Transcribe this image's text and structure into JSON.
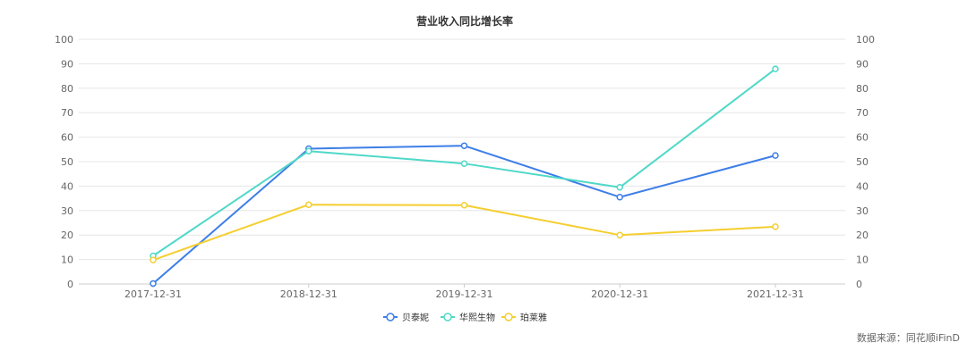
{
  "chart_data": {
    "type": "line",
    "title": "营业收入同比增长率",
    "categories": [
      "2017-12-31",
      "2018-12-31",
      "2019-12-31",
      "2020-12-31",
      "2021-12-31"
    ],
    "ylim": [
      0,
      100
    ],
    "yticks": [
      0,
      10,
      20,
      30,
      40,
      50,
      60,
      70,
      80,
      90,
      100
    ],
    "grid": true,
    "legend_position": "bottom-center",
    "series": [
      {
        "name": "贝泰妮",
        "color": "#3d7ee8",
        "values": [
          0.2,
          55.3,
          56.5,
          35.5,
          52.5
        ]
      },
      {
        "name": "华熙生物",
        "color": "#4fd8c8",
        "values": [
          11.5,
          54.3,
          49.2,
          39.5,
          87.9
        ]
      },
      {
        "name": "珀莱雅",
        "color": "#f5ce2f",
        "values": [
          9.8,
          32.4,
          32.2,
          20.0,
          23.4
        ]
      }
    ]
  },
  "source_text": "数据来源：同花顺iFinD"
}
